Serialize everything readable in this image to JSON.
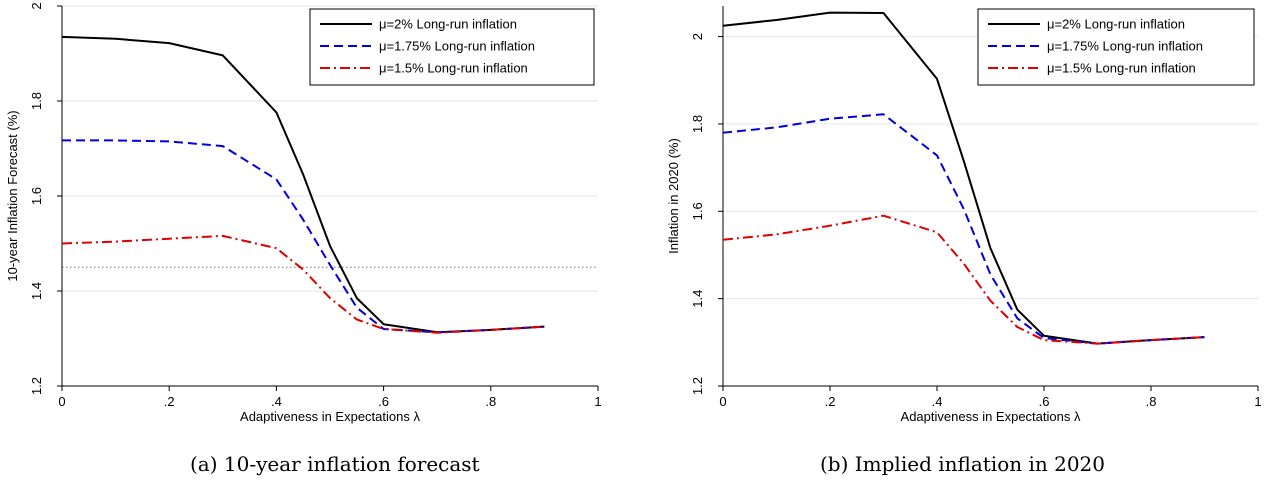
{
  "chart_data": [
    {
      "type": "line",
      "xlabel": "Adaptiveness in Expectations λ",
      "ylabel": "10-year Inflation Forecast (%)",
      "xlim": [
        0,
        1
      ],
      "ylim": [
        1.2,
        2.0
      ],
      "xticks": [
        0,
        0.2,
        0.4,
        0.6,
        0.8,
        1
      ],
      "xtick_labels": [
        "0",
        ".2",
        ".4",
        ".6",
        ".8",
        "1"
      ],
      "yticks": [
        1.2,
        1.4,
        1.6,
        1.8,
        2
      ],
      "ytick_labels": [
        "1.2",
        "1.4",
        "1.6",
        "1.8",
        "2"
      ],
      "grid": true,
      "legend_position": "top-right",
      "reference_line_y": 1.45,
      "x": [
        0,
        0.1,
        0.2,
        0.3,
        0.4,
        0.45,
        0.5,
        0.55,
        0.6,
        0.7,
        0.8,
        0.9
      ],
      "series": [
        {
          "name": "μ=2% Long-run inflation",
          "color": "#000000",
          "dash": "solid",
          "values": [
            1.935,
            1.931,
            1.922,
            1.896,
            1.776,
            1.645,
            1.495,
            1.385,
            1.33,
            1.313,
            1.318,
            1.325
          ]
        },
        {
          "name": "μ=1.75% Long-run inflation",
          "color": "#0000e0",
          "dash": "dashed",
          "values": [
            1.717,
            1.717,
            1.715,
            1.705,
            1.635,
            1.55,
            1.455,
            1.365,
            1.32,
            1.313,
            1.318,
            1.325
          ]
        },
        {
          "name": "μ=1.5% Long-run inflation",
          "color": "#e00000",
          "dash": "dashdot",
          "values": [
            1.5,
            1.504,
            1.51,
            1.516,
            1.49,
            1.445,
            1.385,
            1.34,
            1.32,
            1.312,
            1.318,
            1.325
          ]
        }
      ]
    },
    {
      "type": "line",
      "xlabel": "Adaptiveness in Expectations λ",
      "ylabel": "Inflation in 2020 (%)",
      "xlim": [
        0,
        1
      ],
      "ylim": [
        1.2,
        2.07
      ],
      "xticks": [
        0,
        0.2,
        0.4,
        0.6,
        0.8,
        1
      ],
      "xtick_labels": [
        "0",
        ".2",
        ".4",
        ".6",
        ".8",
        "1"
      ],
      "yticks": [
        1.2,
        1.4,
        1.6,
        1.8,
        2
      ],
      "ytick_labels": [
        "1.2",
        "1.4",
        "1.6",
        "1.8",
        "2"
      ],
      "grid": true,
      "legend_position": "top-right",
      "x": [
        0,
        0.1,
        0.2,
        0.3,
        0.4,
        0.45,
        0.5,
        0.55,
        0.6,
        0.7,
        0.8,
        0.9
      ],
      "series": [
        {
          "name": "μ=2% Long-run inflation",
          "color": "#000000",
          "dash": "solid",
          "values": [
            2.025,
            2.038,
            2.055,
            2.054,
            1.903,
            1.715,
            1.515,
            1.375,
            1.315,
            1.297,
            1.305,
            1.312
          ]
        },
        {
          "name": "μ=1.75% Long-run inflation",
          "color": "#0000e0",
          "dash": "dashed",
          "values": [
            1.78,
            1.792,
            1.812,
            1.822,
            1.728,
            1.605,
            1.455,
            1.355,
            1.31,
            1.297,
            1.305,
            1.312
          ]
        },
        {
          "name": "μ=1.5% Long-run inflation",
          "color": "#e00000",
          "dash": "dashdot",
          "values": [
            1.535,
            1.547,
            1.567,
            1.59,
            1.552,
            1.48,
            1.395,
            1.335,
            1.305,
            1.297,
            1.305,
            1.312
          ]
        }
      ]
    }
  ],
  "captions": [
    "(a) 10-year inflation forecast",
    "(b) Implied inflation in 2020"
  ]
}
